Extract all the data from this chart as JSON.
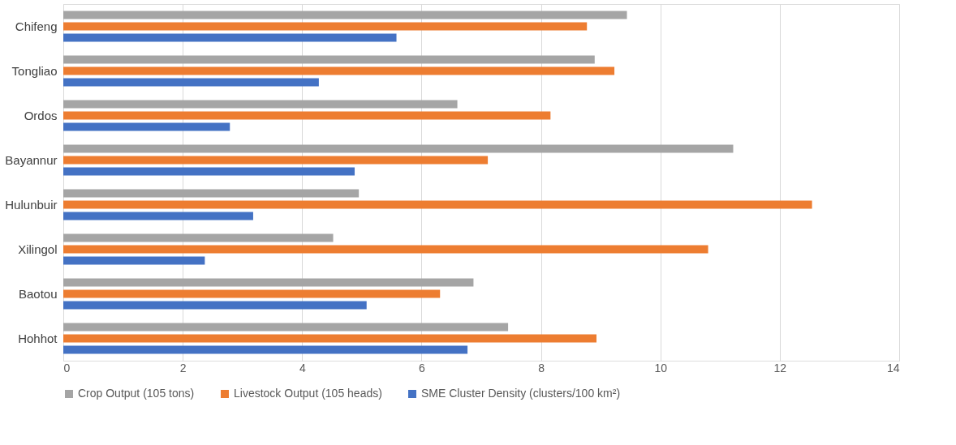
{
  "chart_data": {
    "type": "bar",
    "orientation": "horizontal",
    "categories": [
      "Chifeng",
      "Tongliao",
      "Ordos",
      "Bayannur",
      "Hulunbuir",
      "Xilingol",
      "Baotou",
      "Hohhot"
    ],
    "series": [
      {
        "name": "Crop Output (105 tons)",
        "color": "#a5a5a5",
        "values": [
          9.44,
          8.9,
          6.6,
          11.22,
          4.95,
          4.52,
          6.87,
          7.45
        ]
      },
      {
        "name": "Livestock Output (105 heads)",
        "color": "#ed7d31",
        "values": [
          8.77,
          9.23,
          8.16,
          7.11,
          12.54,
          10.8,
          6.31,
          8.93
        ]
      },
      {
        "name": "SME Cluster Density (clusters/100 km²)",
        "color": "#4472c4",
        "values": [
          5.58,
          4.28,
          2.79,
          4.88,
          3.18,
          2.37,
          5.08,
          6.77
        ]
      }
    ],
    "xlim": [
      0,
      14
    ],
    "xticks": [
      0,
      2,
      4,
      6,
      8,
      10,
      12,
      14
    ],
    "grid": "x",
    "legend": "bottom"
  }
}
